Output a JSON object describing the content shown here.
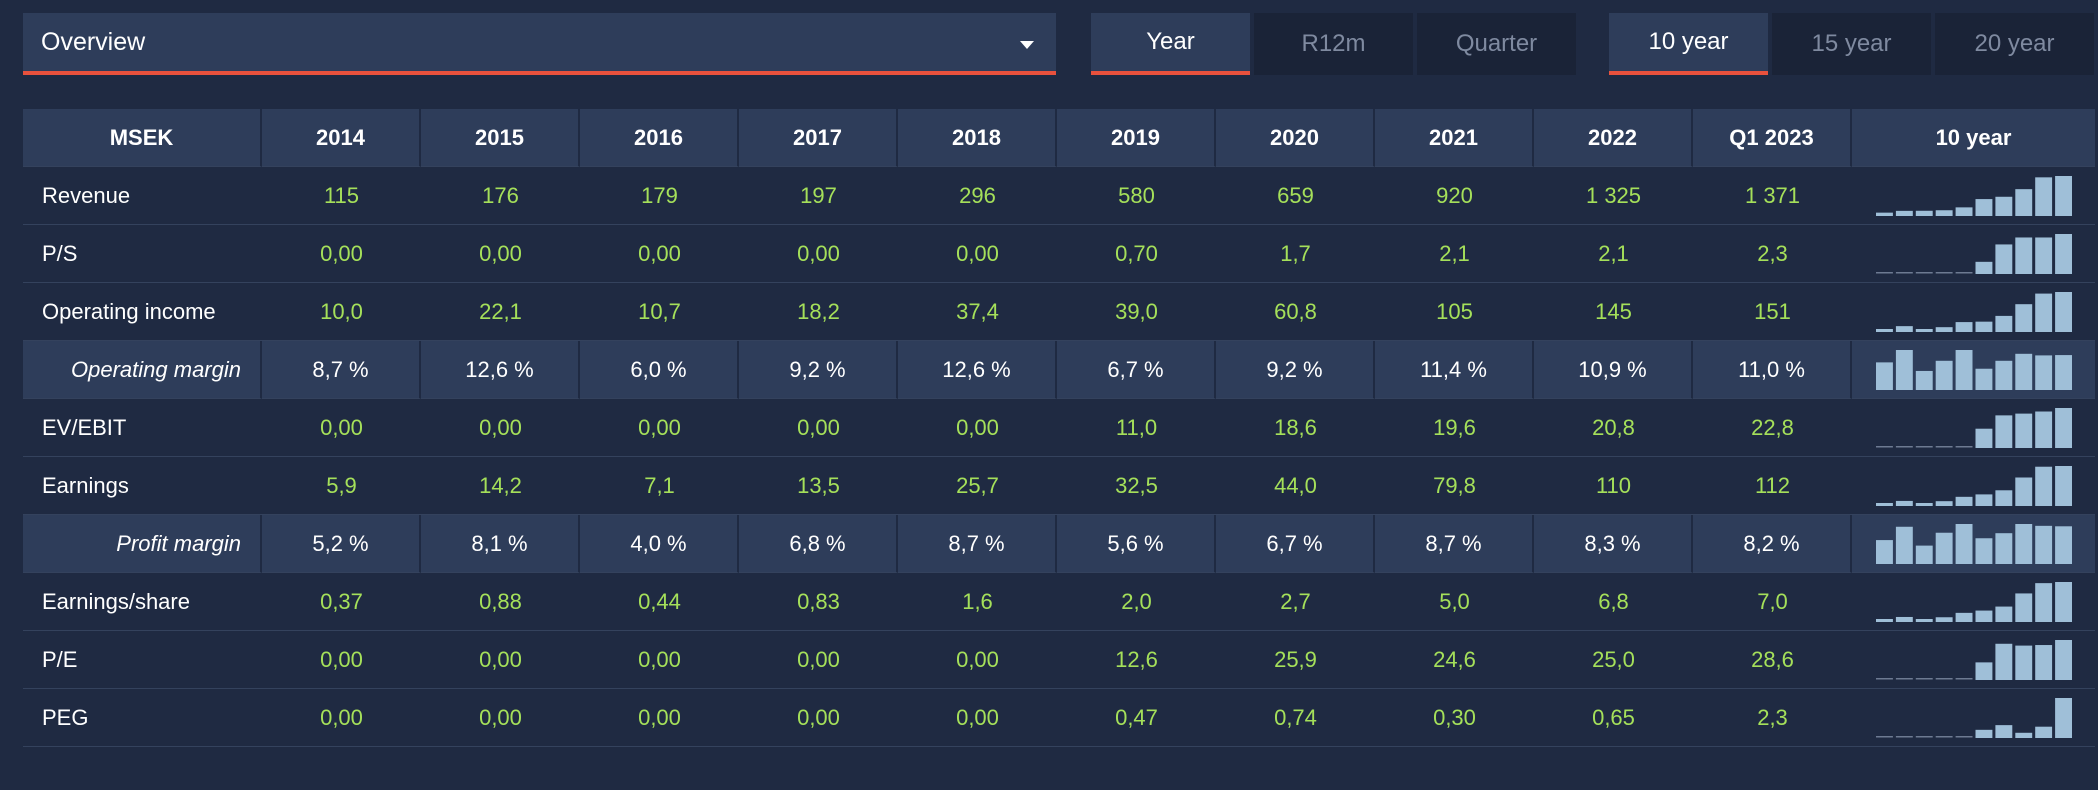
{
  "report_selector": {
    "value": "Overview"
  },
  "period_tabs": [
    {
      "label": "Year",
      "active": true
    },
    {
      "label": "R12m",
      "active": false
    },
    {
      "label": "Quarter",
      "active": false
    }
  ],
  "range_tabs": [
    {
      "label": "10 year",
      "active": true
    },
    {
      "label": "15 year",
      "active": false
    },
    {
      "label": "20 year",
      "active": false
    }
  ],
  "table": {
    "unit_header": "MSEK",
    "columns": [
      "2014",
      "2015",
      "2016",
      "2017",
      "2018",
      "2019",
      "2020",
      "2021",
      "2022",
      "Q1 2023"
    ],
    "sparkline_header": "10 year",
    "rows": [
      {
        "label": "Revenue",
        "type": "value",
        "cells": [
          "115",
          "176",
          "179",
          "197",
          "296",
          "580",
          "659",
          "920",
          "1 325",
          "1 371"
        ],
        "spark": [
          115,
          176,
          179,
          197,
          296,
          580,
          659,
          920,
          1325,
          1371
        ]
      },
      {
        "label": "P/S",
        "type": "value",
        "cells": [
          "0,00",
          "0,00",
          "0,00",
          "0,00",
          "0,00",
          "0,70",
          "1,7",
          "2,1",
          "2,1",
          "2,3"
        ],
        "spark": [
          0,
          0,
          0,
          0,
          0,
          0.7,
          1.7,
          2.1,
          2.1,
          2.3
        ]
      },
      {
        "label": "Operating income",
        "type": "value",
        "cells": [
          "10,0",
          "22,1",
          "10,7",
          "18,2",
          "37,4",
          "39,0",
          "60,8",
          "105",
          "145",
          "151"
        ],
        "spark": [
          10,
          22.1,
          10.7,
          18.2,
          37.4,
          39,
          60.8,
          105,
          145,
          151
        ]
      },
      {
        "label": "Operating margin",
        "type": "percent",
        "cells": [
          "8,7 %",
          "12,6 %",
          "6,0 %",
          "9,2 %",
          "12,6 %",
          "6,7 %",
          "9,2 %",
          "11,4 %",
          "10,9 %",
          "11,0 %"
        ],
        "spark": [
          8.7,
          12.6,
          6.0,
          9.2,
          12.6,
          6.7,
          9.2,
          11.4,
          10.9,
          11.0
        ]
      },
      {
        "label": "EV/EBIT",
        "type": "value",
        "cells": [
          "0,00",
          "0,00",
          "0,00",
          "0,00",
          "0,00",
          "11,0",
          "18,6",
          "19,6",
          "20,8",
          "22,8"
        ],
        "spark": [
          0,
          0,
          0,
          0,
          0,
          11,
          18.6,
          19.6,
          20.8,
          22.8
        ]
      },
      {
        "label": "Earnings",
        "type": "value",
        "cells": [
          "5,9",
          "14,2",
          "7,1",
          "13,5",
          "25,7",
          "32,5",
          "44,0",
          "79,8",
          "110",
          "112"
        ],
        "spark": [
          5.9,
          14.2,
          7.1,
          13.5,
          25.7,
          32.5,
          44,
          79.8,
          110,
          112
        ]
      },
      {
        "label": "Profit margin",
        "type": "percent",
        "cells": [
          "5,2 %",
          "8,1 %",
          "4,0 %",
          "6,8 %",
          "8,7 %",
          "5,6 %",
          "6,7 %",
          "8,7 %",
          "8,3 %",
          "8,2 %"
        ],
        "spark": [
          5.2,
          8.1,
          4.0,
          6.8,
          8.7,
          5.6,
          6.7,
          8.7,
          8.3,
          8.2
        ]
      },
      {
        "label": "Earnings/share",
        "type": "value",
        "cells": [
          "0,37",
          "0,88",
          "0,44",
          "0,83",
          "1,6",
          "2,0",
          "2,7",
          "5,0",
          "6,8",
          "7,0"
        ],
        "spark": [
          0.37,
          0.88,
          0.44,
          0.83,
          1.6,
          2.0,
          2.7,
          5.0,
          6.8,
          7.0
        ]
      },
      {
        "label": "P/E",
        "type": "value",
        "cells": [
          "0,00",
          "0,00",
          "0,00",
          "0,00",
          "0,00",
          "12,6",
          "25,9",
          "24,6",
          "25,0",
          "28,6"
        ],
        "spark": [
          0,
          0,
          0,
          0,
          0,
          12.6,
          25.9,
          24.6,
          25.0,
          28.6
        ]
      },
      {
        "label": "PEG",
        "type": "value",
        "cells": [
          "0,00",
          "0,00",
          "0,00",
          "0,00",
          "0,00",
          "0,47",
          "0,74",
          "0,30",
          "0,65",
          "2,3"
        ],
        "spark": [
          0,
          0,
          0,
          0,
          0,
          0.47,
          0.74,
          0.3,
          0.65,
          2.3
        ]
      }
    ]
  },
  "colors": {
    "background": "#1f2a42",
    "header_bg": "#2e3d5a",
    "accent_underline": "#e8513d",
    "value_green": "#a5e05a",
    "spark_bar": "#9fbfd8",
    "spark_baseline": "#6d7a92"
  },
  "icons": {
    "dropdown_caret": "caret-down-icon"
  }
}
